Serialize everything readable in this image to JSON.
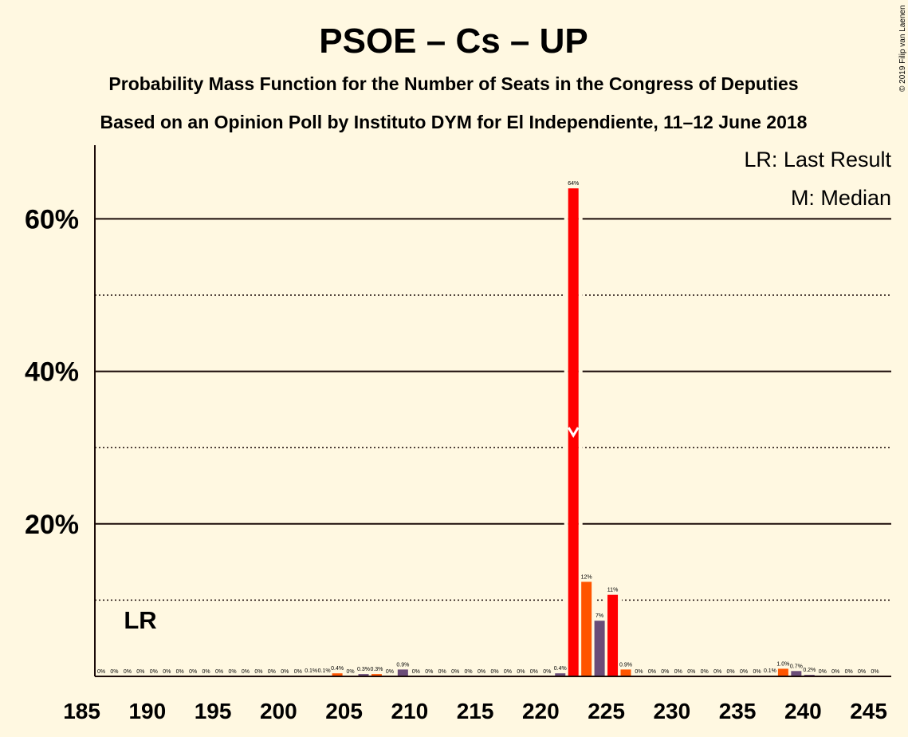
{
  "title": "PSOE – Cs – UP",
  "subtitle1": "Probability Mass Function for the Number of Seats in the Congress of Deputies",
  "subtitle2": "Based on an Opinion Poll by Instituto DYM for El Independiente, 11–12 June 2018",
  "copyright": "© 2019 Filip van Laenen",
  "legend": {
    "last_result": "LR: Last Result",
    "median": "M: Median"
  },
  "lr_marker": "LR",
  "colors": {
    "background": "#FFF8E1",
    "text": "#1A0A08",
    "psoe": "#FF0000",
    "cs": "#FF5500",
    "up": "#6B4C78"
  },
  "chart_data": {
    "type": "bar",
    "x_range": [
      185,
      245
    ],
    "ylim": [
      0,
      70
    ],
    "y_ticks": [
      20,
      40,
      60
    ],
    "y_tick_labels": [
      "20%",
      "40%",
      "60%"
    ],
    "y_minor_ticks": [
      10,
      30,
      50
    ],
    "x_ticks": [
      185,
      190,
      195,
      200,
      205,
      210,
      215,
      220,
      225,
      230,
      235,
      240,
      245
    ],
    "x_tick_labels": [
      "185",
      "190",
      "195",
      "200",
      "205",
      "210",
      "215",
      "220",
      "225",
      "230",
      "235",
      "240",
      "245"
    ],
    "last_result_seat": 188,
    "median_seat": 222,
    "bars": [
      {
        "seat": 186,
        "value": 0,
        "label": "0%",
        "color": "up"
      },
      {
        "seat": 187,
        "value": 0,
        "label": "0%",
        "color": "up"
      },
      {
        "seat": 188,
        "value": 0,
        "label": "0%",
        "color": "up"
      },
      {
        "seat": 189,
        "value": 0,
        "label": "0%",
        "color": "up"
      },
      {
        "seat": 190,
        "value": 0,
        "label": "0%",
        "color": "up"
      },
      {
        "seat": 191,
        "value": 0,
        "label": "0%",
        "color": "up"
      },
      {
        "seat": 192,
        "value": 0,
        "label": "0%",
        "color": "up"
      },
      {
        "seat": 193,
        "value": 0,
        "label": "0%",
        "color": "up"
      },
      {
        "seat": 194,
        "value": 0,
        "label": "0%",
        "color": "up"
      },
      {
        "seat": 195,
        "value": 0,
        "label": "0%",
        "color": "up"
      },
      {
        "seat": 196,
        "value": 0,
        "label": "0%",
        "color": "up"
      },
      {
        "seat": 197,
        "value": 0,
        "label": "0%",
        "color": "up"
      },
      {
        "seat": 198,
        "value": 0,
        "label": "0%",
        "color": "up"
      },
      {
        "seat": 199,
        "value": 0,
        "label": "0%",
        "color": "up"
      },
      {
        "seat": 200,
        "value": 0,
        "label": "0%",
        "color": "up"
      },
      {
        "seat": 201,
        "value": 0,
        "label": "0%",
        "color": "up"
      },
      {
        "seat": 202,
        "value": 0.1,
        "label": "0.1%",
        "color": "up"
      },
      {
        "seat": 203,
        "value": 0.1,
        "label": "0.1%",
        "color": "up"
      },
      {
        "seat": 204,
        "value": 0.4,
        "label": "0.4%",
        "color": "cs"
      },
      {
        "seat": 205,
        "value": 0,
        "label": "0%",
        "color": "up"
      },
      {
        "seat": 206,
        "value": 0.3,
        "label": "0.3%",
        "color": "up"
      },
      {
        "seat": 207,
        "value": 0.3,
        "label": "0.3%",
        "color": "cs"
      },
      {
        "seat": 208,
        "value": 0,
        "label": "0%",
        "color": "up"
      },
      {
        "seat": 209,
        "value": 0.9,
        "label": "0.9%",
        "color": "up"
      },
      {
        "seat": 210,
        "value": 0,
        "label": "0%",
        "color": "up"
      },
      {
        "seat": 211,
        "value": 0,
        "label": "0%",
        "color": "up"
      },
      {
        "seat": 212,
        "value": 0,
        "label": "0%",
        "color": "up"
      },
      {
        "seat": 213,
        "value": 0,
        "label": "0%",
        "color": "up"
      },
      {
        "seat": 214,
        "value": 0,
        "label": "0%",
        "color": "up"
      },
      {
        "seat": 215,
        "value": 0,
        "label": "0%",
        "color": "up"
      },
      {
        "seat": 216,
        "value": 0,
        "label": "0%",
        "color": "up"
      },
      {
        "seat": 217,
        "value": 0,
        "label": "0%",
        "color": "up"
      },
      {
        "seat": 218,
        "value": 0,
        "label": "0%",
        "color": "up"
      },
      {
        "seat": 219,
        "value": 0,
        "label": "0%",
        "color": "up"
      },
      {
        "seat": 220,
        "value": 0,
        "label": "0%",
        "color": "up"
      },
      {
        "seat": 221,
        "value": 0.4,
        "label": "0.4%",
        "color": "up"
      },
      {
        "seat": 222,
        "value": 64,
        "label": "64%",
        "color": "psoe"
      },
      {
        "seat": 223,
        "value": 12.4,
        "label": "12%",
        "color": "cs"
      },
      {
        "seat": 224,
        "value": 7.3,
        "label": "7%",
        "color": "up"
      },
      {
        "seat": 225,
        "value": 10.7,
        "label": "11%",
        "color": "psoe"
      },
      {
        "seat": 226,
        "value": 0.9,
        "label": "0.9%",
        "color": "cs"
      },
      {
        "seat": 227,
        "value": 0,
        "label": "0%",
        "color": "up"
      },
      {
        "seat": 228,
        "value": 0,
        "label": "0%",
        "color": "up"
      },
      {
        "seat": 229,
        "value": 0,
        "label": "0%",
        "color": "up"
      },
      {
        "seat": 230,
        "value": 0,
        "label": "0%",
        "color": "up"
      },
      {
        "seat": 231,
        "value": 0,
        "label": "0%",
        "color": "up"
      },
      {
        "seat": 232,
        "value": 0,
        "label": "0%",
        "color": "up"
      },
      {
        "seat": 233,
        "value": 0,
        "label": "0%",
        "color": "up"
      },
      {
        "seat": 234,
        "value": 0,
        "label": "0%",
        "color": "up"
      },
      {
        "seat": 235,
        "value": 0,
        "label": "0%",
        "color": "up"
      },
      {
        "seat": 236,
        "value": 0,
        "label": "0%",
        "color": "up"
      },
      {
        "seat": 237,
        "value": 0.1,
        "label": "0.1%",
        "color": "up"
      },
      {
        "seat": 238,
        "value": 1.0,
        "label": "1.0%",
        "color": "cs"
      },
      {
        "seat": 239,
        "value": 0.7,
        "label": "0.7%",
        "color": "up"
      },
      {
        "seat": 240,
        "value": 0.2,
        "label": "0.2%",
        "color": "up"
      },
      {
        "seat": 241,
        "value": 0,
        "label": "0%",
        "color": "up"
      },
      {
        "seat": 242,
        "value": 0,
        "label": "0%",
        "color": "up"
      },
      {
        "seat": 243,
        "value": 0,
        "label": "0%",
        "color": "up"
      },
      {
        "seat": 244,
        "value": 0,
        "label": "0%",
        "color": "up"
      },
      {
        "seat": 245,
        "value": 0,
        "label": "0%",
        "color": "up"
      }
    ]
  }
}
